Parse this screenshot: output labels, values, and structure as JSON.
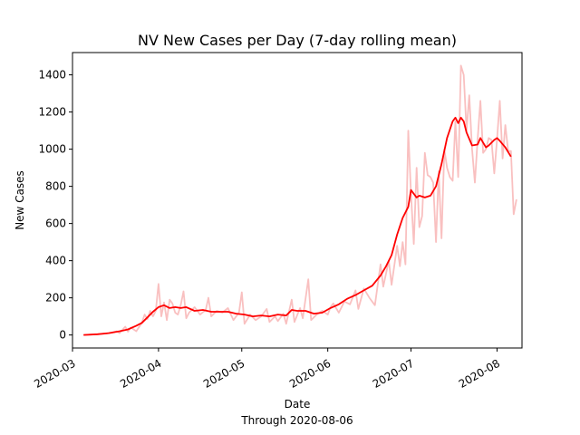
{
  "chart_data": {
    "type": "line",
    "title": "NV New Cases per Day (7-day rolling mean)",
    "xlabel": "Date",
    "xlabel_sub": "Through 2020-08-06",
    "ylabel": "New Cases",
    "ylim": [
      -70,
      1520
    ],
    "xlim": [
      "2020-03-01",
      "2020-08-10"
    ],
    "grid": false,
    "y_ticks": [
      0,
      200,
      400,
      600,
      800,
      1000,
      1200,
      1400
    ],
    "x_ticks": [
      "2020-03",
      "2020-04",
      "2020-05",
      "2020-06",
      "2020-07",
      "2020-08"
    ],
    "x_tick_dates": [
      "2020-03-01",
      "2020-04-01",
      "2020-05-01",
      "2020-06-01",
      "2020-07-01",
      "2020-08-01"
    ],
    "series": [
      {
        "role": "daily",
        "color": "#f9c0c0",
        "points": [
          [
            "2020-03-05",
            0
          ],
          [
            "2020-03-08",
            2
          ],
          [
            "2020-03-11",
            5
          ],
          [
            "2020-03-13",
            8
          ],
          [
            "2020-03-15",
            12
          ],
          [
            "2020-03-17",
            20
          ],
          [
            "2020-03-18",
            10
          ],
          [
            "2020-03-20",
            45
          ],
          [
            "2020-03-21",
            18
          ],
          [
            "2020-03-22",
            40
          ],
          [
            "2020-03-24",
            20
          ],
          [
            "2020-03-26",
            65
          ],
          [
            "2020-03-27",
            110
          ],
          [
            "2020-03-28",
            85
          ],
          [
            "2020-03-29",
            130
          ],
          [
            "2020-03-30",
            100
          ],
          [
            "2020-03-31",
            130
          ],
          [
            "2020-04-01",
            275
          ],
          [
            "2020-04-02",
            100
          ],
          [
            "2020-04-03",
            175
          ],
          [
            "2020-04-04",
            80
          ],
          [
            "2020-04-05",
            190
          ],
          [
            "2020-04-06",
            170
          ],
          [
            "2020-04-07",
            120
          ],
          [
            "2020-04-08",
            110
          ],
          [
            "2020-04-09",
            160
          ],
          [
            "2020-04-10",
            235
          ],
          [
            "2020-04-11",
            90
          ],
          [
            "2020-04-12",
            120
          ],
          [
            "2020-04-14",
            150
          ],
          [
            "2020-04-16",
            110
          ],
          [
            "2020-04-18",
            135
          ],
          [
            "2020-04-19",
            200
          ],
          [
            "2020-04-20",
            100
          ],
          [
            "2020-04-22",
            130
          ],
          [
            "2020-04-24",
            120
          ],
          [
            "2020-04-26",
            145
          ],
          [
            "2020-04-28",
            80
          ],
          [
            "2020-04-30",
            120
          ],
          [
            "2020-05-01",
            230
          ],
          [
            "2020-05-02",
            60
          ],
          [
            "2020-05-04",
            110
          ],
          [
            "2020-05-06",
            80
          ],
          [
            "2020-05-08",
            100
          ],
          [
            "2020-05-10",
            140
          ],
          [
            "2020-05-11",
            70
          ],
          [
            "2020-05-13",
            100
          ],
          [
            "2020-05-14",
            75
          ],
          [
            "2020-05-16",
            115
          ],
          [
            "2020-05-17",
            60
          ],
          [
            "2020-05-19",
            190
          ],
          [
            "2020-05-20",
            70
          ],
          [
            "2020-05-22",
            145
          ],
          [
            "2020-05-23",
            90
          ],
          [
            "2020-05-25",
            300
          ],
          [
            "2020-05-26",
            80
          ],
          [
            "2020-05-28",
            110
          ],
          [
            "2020-05-30",
            130
          ],
          [
            "2020-06-01",
            110
          ],
          [
            "2020-06-02",
            150
          ],
          [
            "2020-06-03",
            170
          ],
          [
            "2020-06-05",
            120
          ],
          [
            "2020-06-07",
            180
          ],
          [
            "2020-06-09",
            165
          ],
          [
            "2020-06-11",
            240
          ],
          [
            "2020-06-12",
            140
          ],
          [
            "2020-06-14",
            250
          ],
          [
            "2020-06-16",
            200
          ],
          [
            "2020-06-18",
            160
          ],
          [
            "2020-06-20",
            380
          ],
          [
            "2020-06-21",
            260
          ],
          [
            "2020-06-23",
            400
          ],
          [
            "2020-06-24",
            270
          ],
          [
            "2020-06-26",
            480
          ],
          [
            "2020-06-27",
            370
          ],
          [
            "2020-06-28",
            500
          ],
          [
            "2020-06-29",
            380
          ],
          [
            "2020-06-30",
            1100
          ],
          [
            "2020-07-01",
            760
          ],
          [
            "2020-07-02",
            490
          ],
          [
            "2020-07-03",
            900
          ],
          [
            "2020-07-04",
            580
          ],
          [
            "2020-07-05",
            640
          ],
          [
            "2020-07-06",
            980
          ],
          [
            "2020-07-07",
            860
          ],
          [
            "2020-07-08",
            850
          ],
          [
            "2020-07-09",
            820
          ],
          [
            "2020-07-10",
            500
          ],
          [
            "2020-07-11",
            880
          ],
          [
            "2020-07-12",
            520
          ],
          [
            "2020-07-13",
            1000
          ],
          [
            "2020-07-14",
            900
          ],
          [
            "2020-07-15",
            850
          ],
          [
            "2020-07-16",
            830
          ],
          [
            "2020-07-17",
            1150
          ],
          [
            "2020-07-18",
            850
          ],
          [
            "2020-07-19",
            1450
          ],
          [
            "2020-07-20",
            1400
          ],
          [
            "2020-07-21",
            1100
          ],
          [
            "2020-07-22",
            1290
          ],
          [
            "2020-07-23",
            1000
          ],
          [
            "2020-07-24",
            820
          ],
          [
            "2020-07-25",
            1050
          ],
          [
            "2020-07-26",
            1260
          ],
          [
            "2020-07-27",
            980
          ],
          [
            "2020-07-28",
            1000
          ],
          [
            "2020-07-29",
            1060
          ],
          [
            "2020-07-30",
            1050
          ],
          [
            "2020-07-31",
            870
          ],
          [
            "2020-08-01",
            1050
          ],
          [
            "2020-08-02",
            1260
          ],
          [
            "2020-08-03",
            950
          ],
          [
            "2020-08-04",
            1130
          ],
          [
            "2020-08-05",
            990
          ],
          [
            "2020-08-06",
            990
          ],
          [
            "2020-08-07",
            650
          ],
          [
            "2020-08-08",
            730
          ]
        ]
      },
      {
        "role": "rolling-mean",
        "color": "#ff0000",
        "points": [
          [
            "2020-03-05",
            0
          ],
          [
            "2020-03-10",
            4
          ],
          [
            "2020-03-14",
            10
          ],
          [
            "2020-03-18",
            20
          ],
          [
            "2020-03-21",
            30
          ],
          [
            "2020-03-24",
            50
          ],
          [
            "2020-03-26",
            65
          ],
          [
            "2020-03-28",
            95
          ],
          [
            "2020-03-30",
            125
          ],
          [
            "2020-04-01",
            150
          ],
          [
            "2020-04-03",
            160
          ],
          [
            "2020-04-05",
            145
          ],
          [
            "2020-04-07",
            150
          ],
          [
            "2020-04-09",
            145
          ],
          [
            "2020-04-11",
            150
          ],
          [
            "2020-04-14",
            130
          ],
          [
            "2020-04-17",
            135
          ],
          [
            "2020-04-20",
            125
          ],
          [
            "2020-04-23",
            125
          ],
          [
            "2020-04-26",
            125
          ],
          [
            "2020-04-29",
            115
          ],
          [
            "2020-05-02",
            110
          ],
          [
            "2020-05-05",
            100
          ],
          [
            "2020-05-08",
            105
          ],
          [
            "2020-05-11",
            100
          ],
          [
            "2020-05-14",
            110
          ],
          [
            "2020-05-17",
            105
          ],
          [
            "2020-05-19",
            135
          ],
          [
            "2020-05-21",
            130
          ],
          [
            "2020-05-24",
            130
          ],
          [
            "2020-05-27",
            115
          ],
          [
            "2020-05-30",
            120
          ],
          [
            "2020-06-02",
            145
          ],
          [
            "2020-06-05",
            165
          ],
          [
            "2020-06-08",
            195
          ],
          [
            "2020-06-11",
            215
          ],
          [
            "2020-06-14",
            240
          ],
          [
            "2020-06-17",
            265
          ],
          [
            "2020-06-20",
            320
          ],
          [
            "2020-06-22",
            370
          ],
          [
            "2020-06-24",
            430
          ],
          [
            "2020-06-26",
            540
          ],
          [
            "2020-06-28",
            630
          ],
          [
            "2020-06-30",
            690
          ],
          [
            "2020-07-01",
            780
          ],
          [
            "2020-07-02",
            760
          ],
          [
            "2020-07-03",
            740
          ],
          [
            "2020-07-04",
            750
          ],
          [
            "2020-07-06",
            740
          ],
          [
            "2020-07-08",
            750
          ],
          [
            "2020-07-10",
            800
          ],
          [
            "2020-07-12",
            920
          ],
          [
            "2020-07-14",
            1060
          ],
          [
            "2020-07-16",
            1150
          ],
          [
            "2020-07-17",
            1170
          ],
          [
            "2020-07-18",
            1140
          ],
          [
            "2020-07-19",
            1170
          ],
          [
            "2020-07-20",
            1150
          ],
          [
            "2020-07-21",
            1090
          ],
          [
            "2020-07-23",
            1020
          ],
          [
            "2020-07-25",
            1025
          ],
          [
            "2020-07-26",
            1060
          ],
          [
            "2020-07-28",
            1010
          ],
          [
            "2020-07-29",
            1020
          ],
          [
            "2020-07-31",
            1050
          ],
          [
            "2020-08-01",
            1060
          ],
          [
            "2020-08-02",
            1045
          ],
          [
            "2020-08-04",
            1010
          ],
          [
            "2020-08-06",
            960
          ]
        ]
      }
    ]
  }
}
